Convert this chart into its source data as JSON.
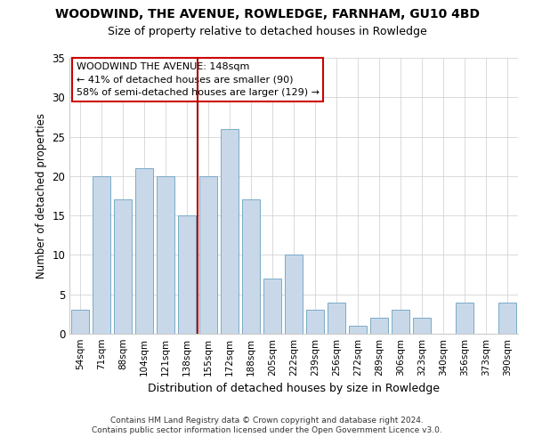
{
  "title": "WOODWIND, THE AVENUE, ROWLEDGE, FARNHAM, GU10 4BD",
  "subtitle": "Size of property relative to detached houses in Rowledge",
  "xlabel": "Distribution of detached houses by size in Rowledge",
  "ylabel": "Number of detached properties",
  "categories": [
    "54sqm",
    "71sqm",
    "88sqm",
    "104sqm",
    "121sqm",
    "138sqm",
    "155sqm",
    "172sqm",
    "188sqm",
    "205sqm",
    "222sqm",
    "239sqm",
    "256sqm",
    "272sqm",
    "289sqm",
    "306sqm",
    "323sqm",
    "340sqm",
    "356sqm",
    "373sqm",
    "390sqm"
  ],
  "values": [
    3,
    20,
    17,
    21,
    20,
    15,
    20,
    26,
    17,
    7,
    10,
    3,
    4,
    1,
    2,
    3,
    2,
    0,
    4,
    0,
    4
  ],
  "bar_color": "#c8d8e8",
  "bar_edgecolor": "#7aaac8",
  "reference_line_x": 5.5,
  "reference_line_color": "#aa0000",
  "annotation_line1": "WOODWIND THE AVENUE: 148sqm",
  "annotation_line2": "← 41% of detached houses are smaller (90)",
  "annotation_line3": "58% of semi-detached houses are larger (129) →",
  "annotation_box_edgecolor": "#cc0000",
  "ylim": [
    0,
    35
  ],
  "yticks": [
    0,
    5,
    10,
    15,
    20,
    25,
    30,
    35
  ],
  "footnote1": "Contains HM Land Registry data © Crown copyright and database right 2024.",
  "footnote2": "Contains public sector information licensed under the Open Government Licence v3.0."
}
